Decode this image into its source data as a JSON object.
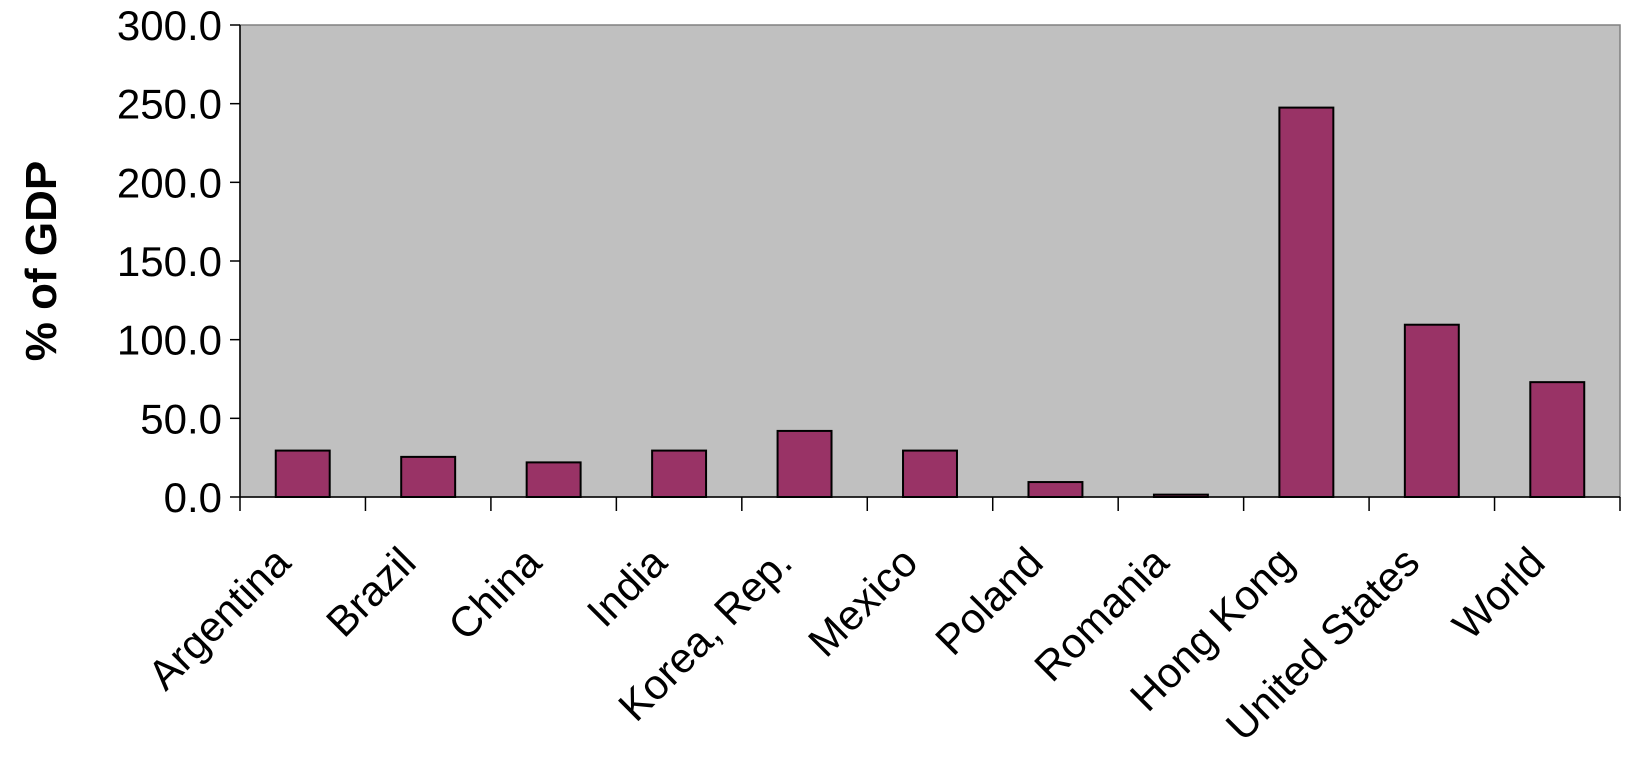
{
  "chart_data": {
    "type": "bar",
    "title": "",
    "xlabel": "",
    "ylabel": "% of GDP",
    "ylim": [
      0,
      300
    ],
    "yticks": [
      0,
      50,
      100,
      150,
      200,
      250,
      300
    ],
    "ytick_labels": [
      "0.0",
      "50.0",
      "100.0",
      "150.0",
      "200.0",
      "250.0",
      "300.0"
    ],
    "categories": [
      "Argentina",
      "Brazil",
      "China",
      "India",
      "Korea, Rep.",
      "Mexico",
      "Poland",
      "Romania",
      "Hong Kong",
      "United States",
      "World"
    ],
    "values": [
      29.5,
      25.5,
      22.0,
      29.5,
      42.0,
      29.5,
      9.5,
      1.5,
      247.5,
      109.5,
      73.0
    ],
    "grid": false,
    "legend": "none",
    "colors": {
      "bar_fill": "#993366",
      "bar_stroke": "#000000",
      "plot_background": "#c0c0c0",
      "axis": "#000000"
    }
  }
}
